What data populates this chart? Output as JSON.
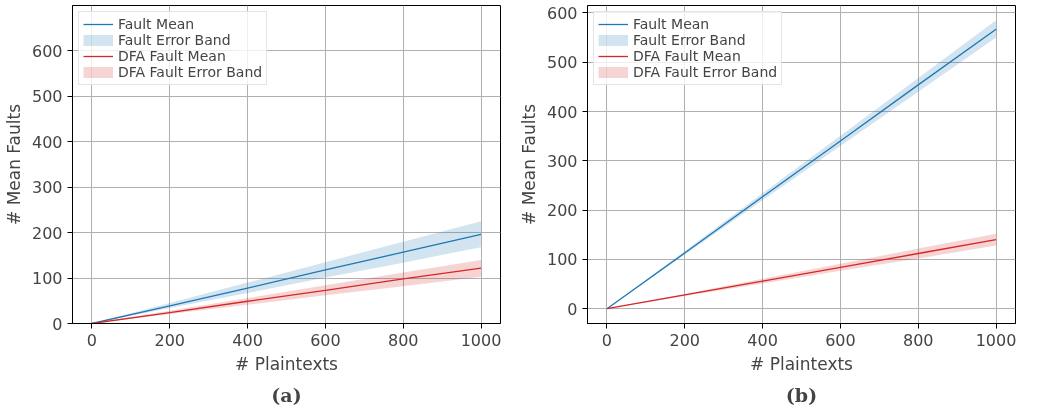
{
  "chart_data": [
    {
      "type": "line",
      "title": "(a)",
      "xlabel": "# Plaintexts",
      "ylabel": "# Mean Faults",
      "x": [
        0,
        200,
        400,
        600,
        800,
        1000
      ],
      "xlim": [
        -50,
        1050
      ],
      "ylim": [
        0,
        700
      ],
      "xticks": [
        0,
        200,
        400,
        600,
        800,
        1000
      ],
      "yticks": [
        0,
        100,
        200,
        300,
        400,
        500,
        600
      ],
      "grid": true,
      "legend": "top left",
      "annotations": [
        "Fault Error Band",
        "DFA Fault Error Band"
      ],
      "series": [
        {
          "name": "Fault Mean",
          "color": "#1f77b4",
          "values": [
            0,
            39,
            78,
            118,
            157,
            196
          ],
          "lower": [
            0,
            34,
            67,
            101,
            134,
            168
          ],
          "upper": [
            0,
            45,
            90,
            135,
            180,
            225
          ]
        },
        {
          "name": "DFA Fault Mean",
          "color": "#d62728",
          "values": [
            0,
            24,
            49,
            73,
            98,
            122
          ],
          "lower": [
            0,
            21,
            41,
            62,
            82,
            103
          ],
          "upper": [
            0,
            28,
            56,
            84,
            112,
            140
          ]
        }
      ]
    },
    {
      "type": "line",
      "title": "(b)",
      "xlabel": "# Plaintexts",
      "ylabel": "# Mean Faults",
      "x": [
        0,
        200,
        400,
        600,
        800,
        1000
      ],
      "xlim": [
        -50,
        1050
      ],
      "ylim": [
        -30,
        615
      ],
      "xticks": [
        0,
        200,
        400,
        600,
        800,
        1000
      ],
      "yticks": [
        0,
        100,
        200,
        300,
        400,
        500,
        600
      ],
      "grid": true,
      "legend": "top left",
      "annotations": [
        "Fault Error Band",
        "DFA Fault Error Band"
      ],
      "series": [
        {
          "name": "Fault Mean",
          "color": "#1f77b4",
          "values": [
            0,
            113,
            227,
            340,
            454,
            567
          ],
          "lower": [
            0,
            110,
            220,
            330,
            440,
            550
          ],
          "upper": [
            0,
            117,
            234,
            351,
            468,
            585
          ]
        },
        {
          "name": "DFA Fault Mean",
          "color": "#d62728",
          "values": [
            0,
            28,
            56,
            84,
            112,
            140
          ],
          "lower": [
            0,
            26,
            51,
            77,
            102,
            128
          ],
          "upper": [
            0,
            30,
            61,
            91,
            122,
            152
          ]
        }
      ]
    }
  ]
}
